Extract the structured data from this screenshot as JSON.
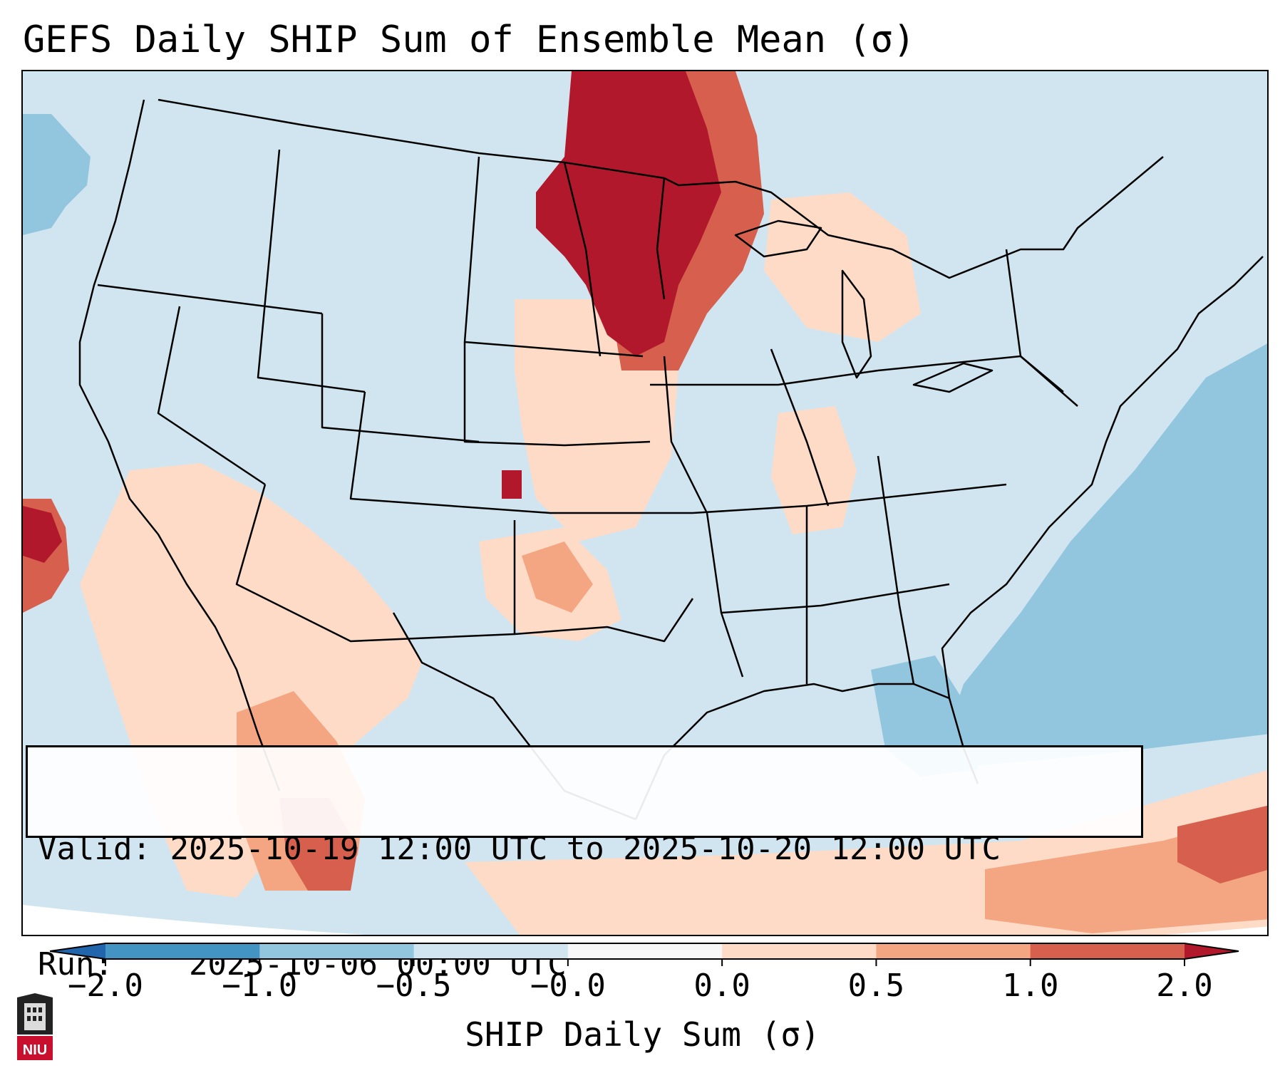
{
  "title": "GEFS Daily SHIP Sum of Ensemble Mean (σ)",
  "info": {
    "valid_label": "Valid:",
    "valid_value": "2025-10-19 12:00 UTC to 2025-10-20 12:00 UTC",
    "run_label": "Run:",
    "run_value": "2025-10-06 00:00 UTC"
  },
  "colorbar": {
    "label": "SHIP Daily Sum (σ)",
    "ticks": [
      "−2.0",
      "−1.0",
      "−0.5",
      "−0.0",
      "0.0",
      "0.5",
      "1.0",
      "2.0"
    ],
    "bins": [
      {
        "range": "<-2.0",
        "color": "#2166ac"
      },
      {
        "range": "-2.0 to -1.0",
        "color": "#4393c3"
      },
      {
        "range": "-1.0 to -0.5",
        "color": "#92c5de"
      },
      {
        "range": "-0.5 to -0.0",
        "color": "#d1e5f0"
      },
      {
        "range": "-0.0 to 0.0",
        "color": "#f7f7f7"
      },
      {
        "range": "0.0 to 0.5",
        "color": "#fddbc7"
      },
      {
        "range": "0.5 to 1.0",
        "color": "#f4a582"
      },
      {
        "range": "1.0 to 2.0",
        "color": "#d6604d"
      },
      {
        "range": ">2.0",
        "color": "#b2182b"
      }
    ]
  },
  "logo": {
    "name": "NIU",
    "text": "NIU"
  },
  "map": {
    "projection": "Lambert Conformal, CONUS",
    "features": [
      "state borders",
      "country borders",
      "coastlines",
      "Great Lakes"
    ],
    "notable_regions": [
      {
        "area": "North Dakota / South Dakota / eastern Montana border",
        "category": ">2.0"
      },
      {
        "area": "Minnesota / eastern Dakotas",
        "category": "1.0 to 2.0"
      },
      {
        "area": "Southeastern Colorado",
        "category": ">2.0"
      },
      {
        "area": "Pacific offshore of Northern California",
        "category": "1.0 to 2.0"
      },
      {
        "area": "Southwest US / northwestern Mexico",
        "category": "0.0 to 1.0"
      },
      {
        "area": "Western Atlantic offshore",
        "category": "-1.0 to -0.5"
      },
      {
        "area": "Caribbean / Cuba",
        "category": "0.5 to 2.0"
      }
    ]
  }
}
